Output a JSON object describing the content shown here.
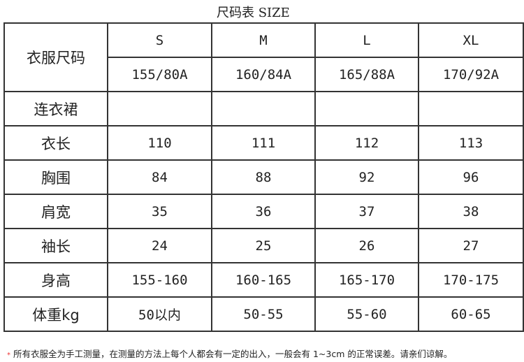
{
  "title": "尺码表 SIZE",
  "header": {
    "label": "衣服尺码",
    "sizes": [
      "S",
      "M",
      "L",
      "XL"
    ],
    "codes": [
      "155/80A",
      "160/84A",
      "165/88A",
      "170/92A"
    ]
  },
  "rows": [
    {
      "label": "连衣裙",
      "values": [
        "",
        "",
        "",
        ""
      ]
    },
    {
      "label": "衣长",
      "values": [
        "110",
        "111",
        "112",
        "113"
      ]
    },
    {
      "label": "胸围",
      "values": [
        "84",
        "88",
        "92",
        "96"
      ]
    },
    {
      "label": "肩宽",
      "values": [
        "35",
        "36",
        "37",
        "38"
      ]
    },
    {
      "label": "袖长",
      "values": [
        "24",
        "25",
        "26",
        "27"
      ]
    },
    {
      "label": "身高",
      "values": [
        "155-160",
        "160-165",
        "165-170",
        "170-175"
      ]
    },
    {
      "label": "体重kg",
      "values": [
        "50以内",
        "50-55",
        "55-60",
        "60-65"
      ]
    }
  ],
  "note": {
    "star": "*",
    "text": "所有衣服全为手工测量，在测量的方法上每个人都会有一定的出入，一般会有 1~3cm 的正常误差。请亲们谅解。"
  },
  "colors": {
    "border": "#333333",
    "star": "#ee3333"
  }
}
